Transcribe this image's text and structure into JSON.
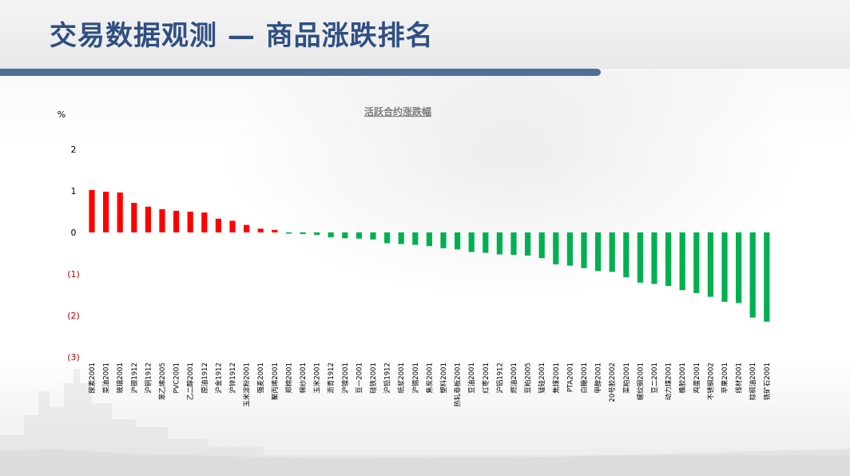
{
  "page": {
    "title": "交易数据观测 — 商品涨跌排名"
  },
  "colors": {
    "title": "#2f4f82",
    "title_rule": "#4f6f9b",
    "up": "#ff0000",
    "down": "#00b050",
    "negative_tick": "#c00000",
    "text": "#000000",
    "chart_title": "#7f7f7f"
  },
  "chart_data": {
    "type": "bar",
    "title": "活跃合约涨跌幅",
    "ylabel": "%",
    "ylim": [
      -3,
      2
    ],
    "yticks": [
      2,
      1,
      0,
      -1,
      -2,
      -3
    ],
    "ytick_labels": [
      "2",
      "1",
      "0",
      "(1)",
      "(2)",
      "(3)"
    ],
    "grid": false,
    "legend": "none",
    "categories": [
      "尿素2001",
      "菜油2001",
      "玻璃2001",
      "沪银1912",
      "沪铜1912",
      "苯乙烯2005",
      "PVC2001",
      "乙二醇2001",
      "原油1912",
      "沪金1912",
      "沪锌1912",
      "玉米淀粉2001",
      "强麦2001",
      "聚丙烯2001",
      "郑棉2001",
      "棉纱2001",
      "玉米2001",
      "沥青1912",
      "沪镍2001",
      "豆一2001",
      "硅铁2001",
      "沪铅1912",
      "纸浆2001",
      "沪锡2001",
      "焦炭2001",
      "塑料2001",
      "热轧卷板2001",
      "豆油2001",
      "红枣2001",
      "沪铝1912",
      "燃油2001",
      "豆粕2005",
      "锰硅2001",
      "焦煤2001",
      "PTA2001",
      "白糖2001",
      "甲醇2001",
      "20号胶2002",
      "菜粕2001",
      "螺纹钢2001",
      "豆二2001",
      "动力煤2001",
      "橡胶2001",
      "鸡蛋2001",
      "不锈钢2002",
      "苹果2001",
      "线材2001",
      "棕榈油2001",
      "铁矿石2001"
    ],
    "values": [
      1.02,
      0.98,
      0.96,
      0.71,
      0.62,
      0.56,
      0.52,
      0.5,
      0.48,
      0.33,
      0.28,
      0.18,
      0.09,
      0.06,
      -0.03,
      -0.04,
      -0.06,
      -0.12,
      -0.14,
      -0.15,
      -0.17,
      -0.26,
      -0.28,
      -0.3,
      -0.33,
      -0.38,
      -0.41,
      -0.47,
      -0.49,
      -0.53,
      -0.54,
      -0.56,
      -0.62,
      -0.77,
      -0.8,
      -0.86,
      -0.93,
      -0.95,
      -1.08,
      -1.21,
      -1.24,
      -1.29,
      -1.39,
      -1.46,
      -1.55,
      -1.67,
      -1.7,
      -2.05,
      -2.15
    ]
  }
}
